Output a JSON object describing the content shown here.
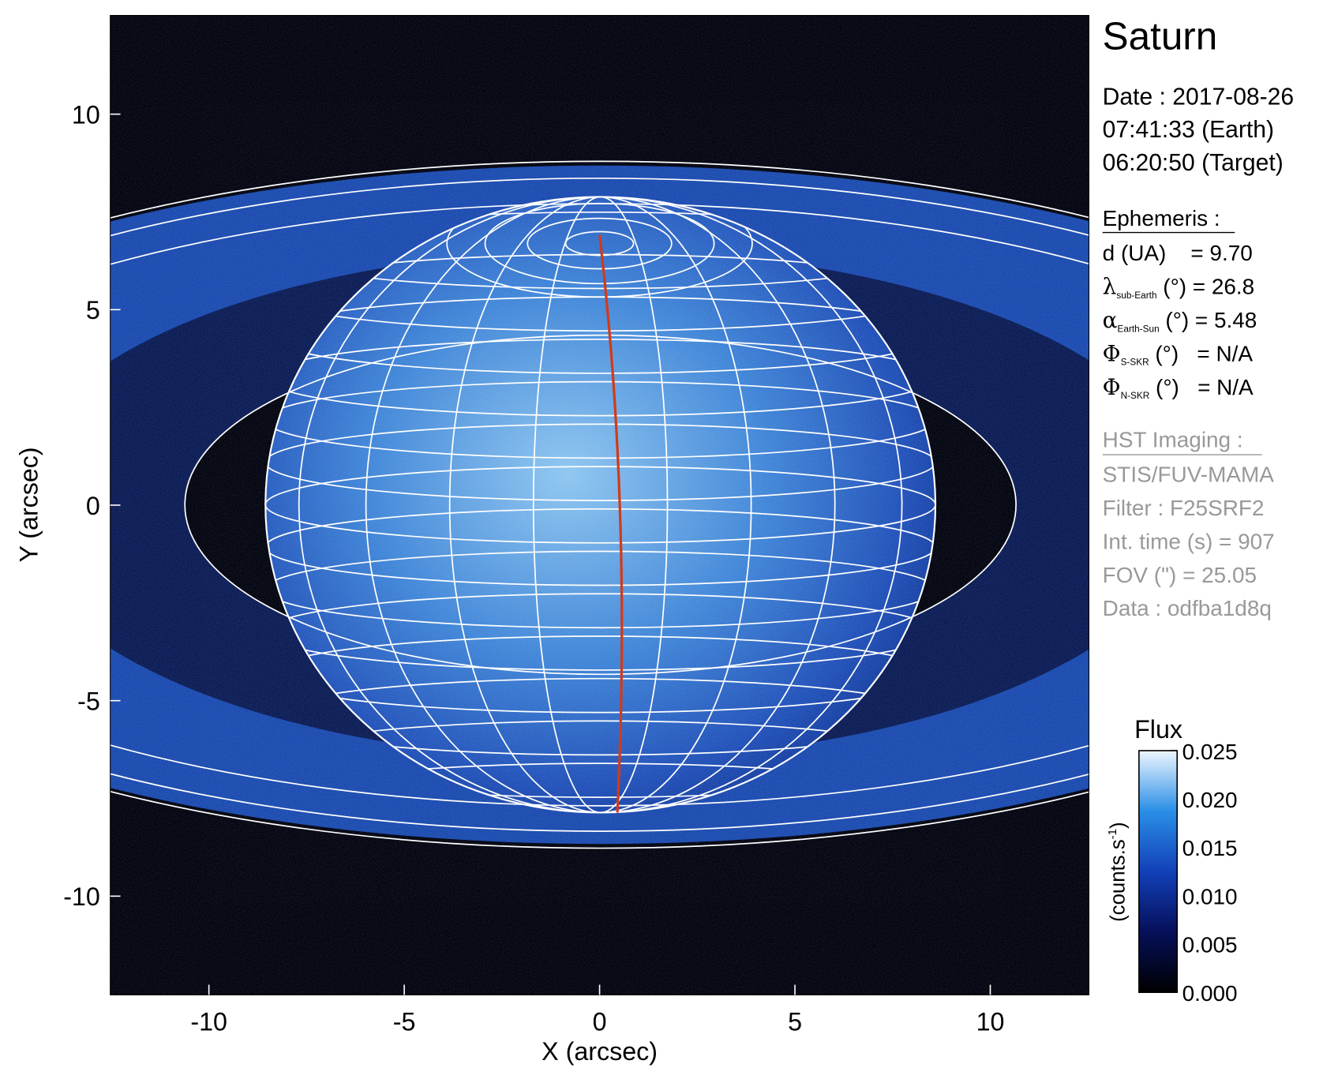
{
  "chart_data": {
    "type": "image",
    "title": "Saturn",
    "xlabel": "X (arcsec)",
    "ylabel": "Y (arcsec)",
    "xlim": [
      -12.525,
      12.525
    ],
    "ylim": [
      -12.525,
      12.525
    ],
    "xticks": [
      -10,
      -5,
      0,
      5,
      10
    ],
    "yticks": [
      -10,
      -5,
      0,
      5,
      10
    ],
    "info": {
      "date_lines": [
        "Date : 2017-08-26",
        "07:41:33 (Earth)",
        "06:20:50 (Target)"
      ],
      "ephemeris_title": "Ephemeris :",
      "ephemeris": [
        {
          "text": "d (UA)    = 9.70"
        },
        {
          "symbol": "λ",
          "sub": "sub-Earth",
          "text": " (°) = 26.8"
        },
        {
          "symbol": "α",
          "sub": "Earth-Sun",
          "text": " (°) = 5.48"
        },
        {
          "symbol": "Φ",
          "sub": "S-SKR",
          "text": " (°)   = N/A"
        },
        {
          "symbol": "Φ",
          "sub": "N-SKR",
          "text": " (°)   = N/A"
        }
      ],
      "imaging_title": "HST Imaging :",
      "imaging": [
        "STIS/FUV-MAMA",
        "Filter : F25SRF2",
        "Int. time (s) = 907",
        "FOV (\") = 25.05",
        "Data : odfba1d8q"
      ]
    },
    "colorbar": {
      "label": "Flux",
      "unit": [
        "(counts.s",
        "-1",
        ")"
      ],
      "lim": [
        0,
        0.025
      ],
      "ticks": [
        {
          "value": 0,
          "label": "0.000"
        },
        0.005,
        {
          "value": 0.01,
          "label": "0.010"
        },
        0.015,
        {
          "value": 0.02,
          "label": "0.020"
        },
        0.025
      ]
    }
  }
}
